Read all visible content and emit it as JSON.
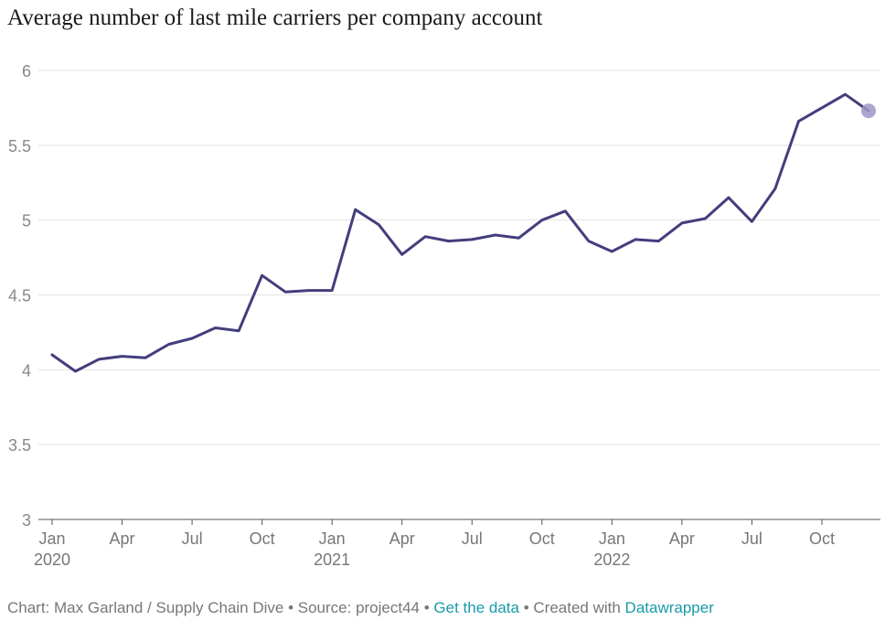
{
  "chart_data": {
    "type": "line",
    "title": "Average number of last mile carriers per company account",
    "xlabel": "",
    "ylabel": "",
    "ylim": [
      3,
      6
    ],
    "y_ticks": [
      "6",
      "5.5",
      "5",
      "4.5",
      "4",
      "3.5",
      "3"
    ],
    "x_ticks": [
      {
        "month": "Jan",
        "year": "2020",
        "index": 0
      },
      {
        "month": "Apr",
        "year": "",
        "index": 3
      },
      {
        "month": "Jul",
        "year": "",
        "index": 6
      },
      {
        "month": "Oct",
        "year": "",
        "index": 9
      },
      {
        "month": "Jan",
        "year": "2021",
        "index": 12
      },
      {
        "month": "Apr",
        "year": "",
        "index": 15
      },
      {
        "month": "Jul",
        "year": "",
        "index": 18
      },
      {
        "month": "Oct",
        "year": "",
        "index": 21
      },
      {
        "month": "Jan",
        "year": "2022",
        "index": 24
      },
      {
        "month": "Apr",
        "year": "",
        "index": 27
      },
      {
        "month": "Jul",
        "year": "",
        "index": 30
      },
      {
        "month": "Oct",
        "year": "",
        "index": 33
      }
    ],
    "x": [
      "2020-01",
      "2020-02",
      "2020-03",
      "2020-04",
      "2020-05",
      "2020-06",
      "2020-07",
      "2020-08",
      "2020-09",
      "2020-10",
      "2020-11",
      "2020-12",
      "2021-01",
      "2021-02",
      "2021-03",
      "2021-04",
      "2021-05",
      "2021-06",
      "2021-07",
      "2021-08",
      "2021-09",
      "2021-10",
      "2021-11",
      "2021-12",
      "2022-01",
      "2022-02",
      "2022-03",
      "2022-04",
      "2022-05",
      "2022-06",
      "2022-07",
      "2022-08",
      "2022-09",
      "2022-10",
      "2022-11",
      "2022-12"
    ],
    "series": [
      {
        "values": [
          4.1,
          3.99,
          4.07,
          4.09,
          4.08,
          4.17,
          4.21,
          4.28,
          4.26,
          4.63,
          4.52,
          4.53,
          4.53,
          5.07,
          4.97,
          4.77,
          4.89,
          4.86,
          4.87,
          4.9,
          4.88,
          5.0,
          5.06,
          4.86,
          4.79,
          4.87,
          4.86,
          4.98,
          5.01,
          5.15,
          4.99,
          5.21,
          5.66,
          5.75,
          5.84,
          5.73
        ],
        "color": "#433e7c"
      }
    ],
    "grid": true,
    "end_marker_color": "#9b97c8"
  },
  "footer": {
    "credit": "Chart: Max Garland / Supply Chain Dive • Source: project44 • ",
    "get_data": "Get the data",
    "created_with": " • Created with ",
    "datawrapper": "Datawrapper"
  }
}
